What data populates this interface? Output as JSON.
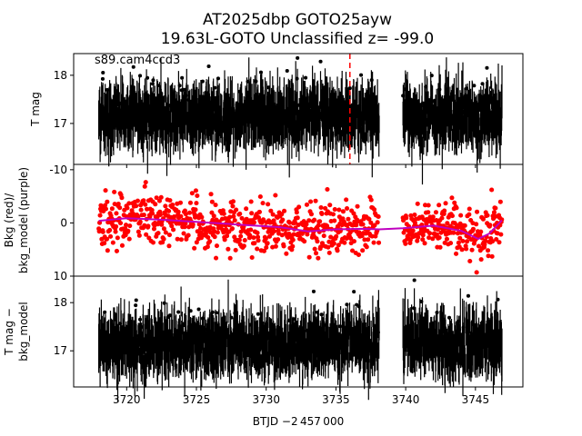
{
  "figure": {
    "title_line1": "AT2025dbp  GOTO25ayw",
    "title_line2": "19.63L-GOTO Unclassified z= -99.0",
    "xlabel": "BTJD −2 457 000"
  },
  "chart_data": [
    {
      "type": "scatter",
      "panel": "top",
      "ylabel": "T mag",
      "annotation": "s89.cam4ccd3",
      "ylim": [
        18.45,
        16.15
      ],
      "yticks": [
        17,
        18
      ],
      "xlim": [
        3716.2,
        3748.4
      ],
      "xticks": [
        3720,
        3725,
        3730,
        3735,
        3740,
        3745
      ],
      "vline_x": 3736.0,
      "vline_color": "#ff0000",
      "point_color": "#000000",
      "segments": [
        [
          3718.0,
          3733.0
        ],
        [
          3733.0,
          3738.1
        ],
        [
          3739.8,
          3746.9
        ]
      ],
      "series": [
        {
          "values_center": 17.15,
          "scatter": 0.35
        }
      ]
    },
    {
      "type": "scatter",
      "panel": "middle",
      "ylabel": "Bkg (red)/\nbkg_model (purple)",
      "ylim": [
        -11,
        10
      ],
      "yticks": [
        -10,
        0,
        10
      ],
      "xlim": [
        3716.2,
        3748.4
      ],
      "point_color": "#ff0000",
      "model_color": "#bf00bf",
      "model": {
        "x": [
          3718.0,
          3720.0,
          3722.5,
          3725.0,
          3728.0,
          3731.0,
          3733.0,
          3735.0,
          3737.0,
          3738.1,
          3739.8,
          3742.0,
          3744.0,
          3745.2,
          3746.0,
          3746.9
        ],
        "y": [
          -0.4,
          -0.9,
          -0.6,
          -0.2,
          0.3,
          0.8,
          1.6,
          1.2,
          1.1,
          1.2,
          1.0,
          0.5,
          1.5,
          3.0,
          2.0,
          -0.5
        ]
      }
    },
    {
      "type": "scatter",
      "panel": "bottom",
      "ylabel": "T mag −\nbkg_model",
      "ylim": [
        18.55,
        16.25
      ],
      "yticks": [
        17,
        18
      ],
      "xlim": [
        3716.2,
        3748.4
      ],
      "xticks": [
        3720,
        3725,
        3730,
        3735,
        3740,
        3745
      ],
      "point_color": "#000000",
      "segments": [
        [
          3718.0,
          3733.0
        ],
        [
          3733.0,
          3738.1
        ],
        [
          3739.8,
          3746.9
        ]
      ],
      "series": [
        {
          "values_center": 17.15,
          "scatter": 0.35
        }
      ]
    }
  ]
}
